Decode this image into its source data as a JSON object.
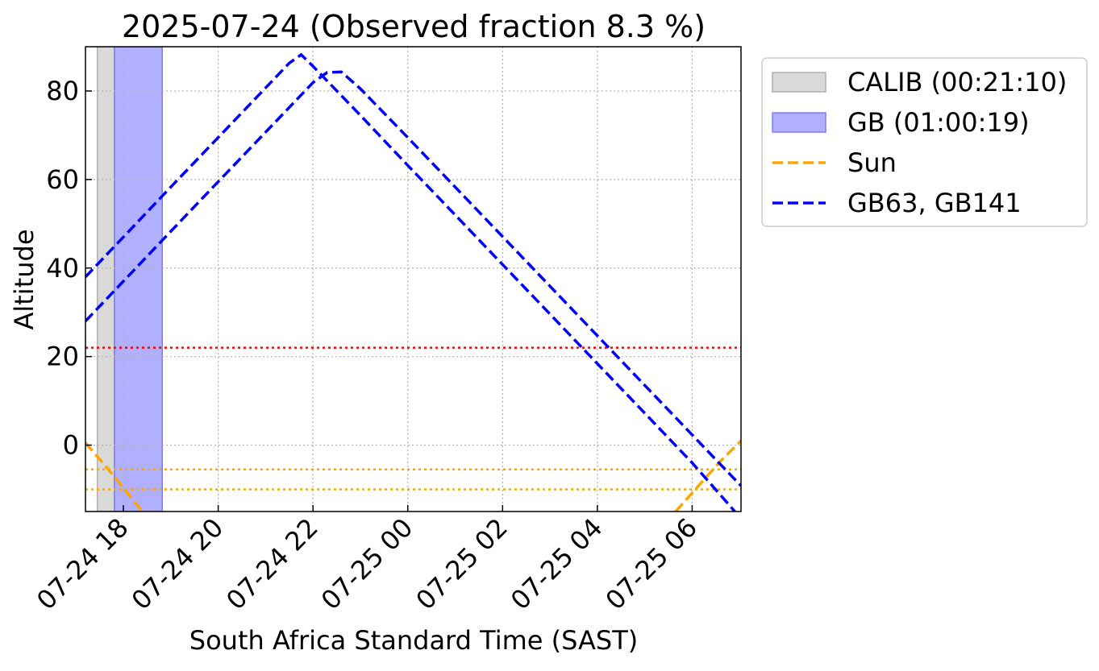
{
  "chart_data": {
    "type": "line",
    "title": "2025-07-24 (Observed fraction 8.3 %)",
    "xlabel": "South Africa Standard Time (SAST)",
    "ylabel": "Altitude",
    "x_unit": "hours",
    "xlim": [
      17.2,
      31.03
    ],
    "ylim": [
      -15,
      90
    ],
    "grid": true,
    "legend_position": "outside-right",
    "x_ticks": [
      {
        "x": 18,
        "label": "07-24 18"
      },
      {
        "x": 20,
        "label": "07-24 20"
      },
      {
        "x": 22,
        "label": "07-24 22"
      },
      {
        "x": 24,
        "label": "07-25 00"
      },
      {
        "x": 26,
        "label": "07-25 02"
      },
      {
        "x": 28,
        "label": "07-25 04"
      },
      {
        "x": 30,
        "label": "07-25 06"
      }
    ],
    "y_ticks": [
      {
        "y": 0,
        "label": "0"
      },
      {
        "y": 20,
        "label": "20"
      },
      {
        "y": 40,
        "label": "40"
      },
      {
        "y": 60,
        "label": "60"
      },
      {
        "y": 80,
        "label": "80"
      }
    ],
    "bands": [
      {
        "name": "CALIB (00:21:10)",
        "x_start": 17.45,
        "x_end": 17.81,
        "color": "#d9d9d9",
        "stroke": "#b0b0b0"
      },
      {
        "name": "GB (01:00:19)",
        "x_start": 17.81,
        "x_end": 18.82,
        "color": "#b0b0ff",
        "stroke": "#7a7aff"
      }
    ],
    "hlines": [
      {
        "y": 22,
        "color": "#ff0000"
      },
      {
        "y": -5.5,
        "color": "#ffa500"
      },
      {
        "y": -10,
        "color": "#ffa500"
      }
    ],
    "series": [
      {
        "name": "Sun",
        "color": "#ffa500",
        "segments": [
          [
            [
              17.2,
              0.5
            ],
            [
              17.5,
              -3.2
            ],
            [
              17.8,
              -7.0
            ],
            [
              18.1,
              -11.0
            ],
            [
              18.4,
              -15.0
            ]
          ],
          [
            [
              29.65,
              -15.0
            ],
            [
              30.0,
              -10.8
            ],
            [
              30.3,
              -7.2
            ],
            [
              30.6,
              -3.6
            ],
            [
              31.03,
              1.0
            ]
          ]
        ]
      },
      {
        "name": "GB63",
        "color": "#0000ff",
        "segments": [
          [
            [
              17.2,
              38.0
            ],
            [
              18.0,
              47.0
            ],
            [
              19.0,
              58.3
            ],
            [
              20.0,
              69.5
            ],
            [
              21.0,
              80.7
            ],
            [
              21.5,
              86.3
            ],
            [
              21.75,
              88.2
            ],
            [
              22.0,
              85.6
            ],
            [
              23.0,
              74.5
            ],
            [
              24.0,
              63.2
            ],
            [
              25.0,
              52.0
            ],
            [
              26.0,
              40.8
            ],
            [
              27.0,
              29.6
            ],
            [
              28.0,
              18.4
            ],
            [
              29.0,
              7.2
            ],
            [
              30.0,
              -4.0
            ],
            [
              30.9,
              -15.0
            ]
          ]
        ]
      },
      {
        "name": "GB141",
        "color": "#0000ff",
        "segments": [
          [
            [
              17.2,
              28.0
            ],
            [
              18.0,
              37.0
            ],
            [
              19.0,
              48.3
            ],
            [
              20.0,
              59.5
            ],
            [
              21.0,
              70.7
            ],
            [
              22.0,
              81.9
            ],
            [
              22.3,
              84.2
            ],
            [
              22.6,
              84.3
            ],
            [
              23.0,
              80.5
            ],
            [
              24.0,
              69.5
            ],
            [
              25.0,
              58.3
            ],
            [
              26.0,
              47.1
            ],
            [
              27.0,
              35.9
            ],
            [
              28.0,
              24.7
            ],
            [
              29.0,
              13.5
            ],
            [
              30.0,
              2.3
            ],
            [
              31.03,
              -9.2
            ]
          ]
        ]
      }
    ],
    "legend": [
      {
        "label": "CALIB (00:21:10)",
        "kind": "patch",
        "color": "#d9d9d9",
        "stroke": "#b0b0b0"
      },
      {
        "label": "GB (01:00:19)",
        "kind": "patch",
        "color": "#b0b0ff",
        "stroke": "#7a7aff"
      },
      {
        "label": "Sun",
        "kind": "dashed-line",
        "color": "#ffa500"
      },
      {
        "label": "GB63, GB141",
        "kind": "dashed-line",
        "color": "#0000ff"
      }
    ]
  }
}
